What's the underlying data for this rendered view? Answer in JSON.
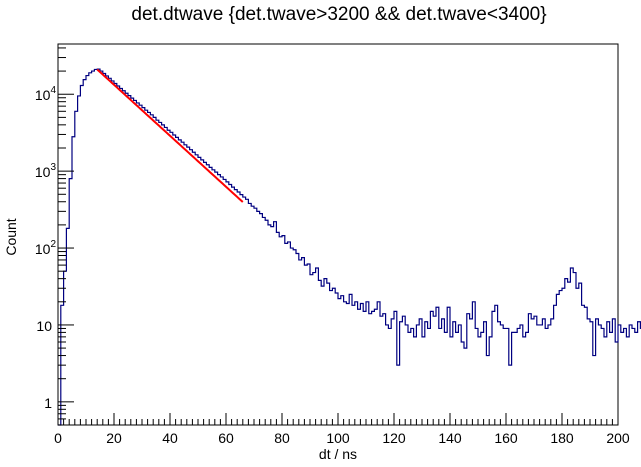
{
  "chart_data": {
    "type": "histogram",
    "title": "det.dtwave {det.twave>3200 && det.twave<3400}",
    "xlabel": "dt / ns",
    "ylabel": "Count",
    "xlim": [
      0,
      200
    ],
    "ylim": [
      0.5,
      45000
    ],
    "yscale": "log",
    "grid": false,
    "bin_width": 1,
    "x_ticks": [
      0,
      20,
      40,
      60,
      80,
      100,
      120,
      140,
      160,
      180,
      200
    ],
    "y_ticks": [
      {
        "value": 1,
        "label": "1"
      },
      {
        "value": 10,
        "label": "10"
      },
      {
        "value": 100,
        "label": "10",
        "exp": "2"
      },
      {
        "value": 1000,
        "label": "10",
        "exp": "3"
      },
      {
        "value": 10000,
        "label": "10",
        "exp": "4"
      }
    ],
    "series": [
      {
        "kind": "histogram",
        "color": "#000080",
        "x_start": 0,
        "values": [
          0.5,
          18,
          50,
          180,
          800,
          2800,
          6000,
          9500,
          13000,
          15500,
          17500,
          19000,
          20000,
          21000,
          21200,
          20000,
          18600,
          17300,
          16100,
          14900,
          13800,
          12800,
          11900,
          11100,
          10300,
          9600,
          8900,
          8300,
          7700,
          7200,
          6700,
          6200,
          5800,
          5400,
          5000,
          4600,
          4300,
          4000,
          3700,
          3400,
          3200,
          2950,
          2750,
          2550,
          2380,
          2200,
          2050,
          1900,
          1760,
          1630,
          1510,
          1400,
          1300,
          1210,
          1120,
          1040,
          970,
          900,
          840,
          780,
          725,
          670,
          620,
          575,
          535,
          495,
          460,
          430,
          380,
          350,
          330,
          300,
          280,
          250,
          230,
          200,
          190,
          220,
          160,
          140,
          145,
          115,
          120,
          100,
          95,
          85,
          70,
          75,
          60,
          62,
          45,
          48,
          55,
          38,
          32,
          40,
          35,
          28,
          30,
          26,
          22,
          24,
          20,
          19,
          25,
          18,
          20,
          16,
          19,
          15,
          20,
          14,
          15,
          16,
          20,
          13,
          14,
          10,
          9,
          12,
          15,
          3,
          11,
          13,
          10,
          8,
          9,
          7,
          10,
          12,
          7,
          11,
          9,
          15,
          13,
          17,
          9,
          12,
          8,
          17,
          7,
          11,
          8,
          10,
          6,
          5,
          14,
          12,
          20,
          9,
          7,
          8,
          11,
          4,
          7,
          15,
          18,
          11,
          10,
          9,
          9,
          3,
          8,
          8,
          9,
          10,
          7,
          8,
          14,
          12,
          13,
          10,
          10,
          12,
          9,
          10,
          12,
          18,
          25,
          28,
          30,
          40,
          36,
          55,
          48,
          30,
          35,
          18,
          17,
          12,
          11,
          4,
          12,
          10,
          9,
          7,
          11,
          8,
          12,
          6,
          10,
          8,
          9,
          7,
          10,
          9,
          8,
          11,
          9,
          9,
          10,
          11,
          10
        ]
      },
      {
        "kind": "fit",
        "color": "#ff0000",
        "function": "exponential",
        "x_range": [
          14,
          66
        ],
        "amplitude": 21000,
        "decay_ns": 13.1
      }
    ]
  }
}
